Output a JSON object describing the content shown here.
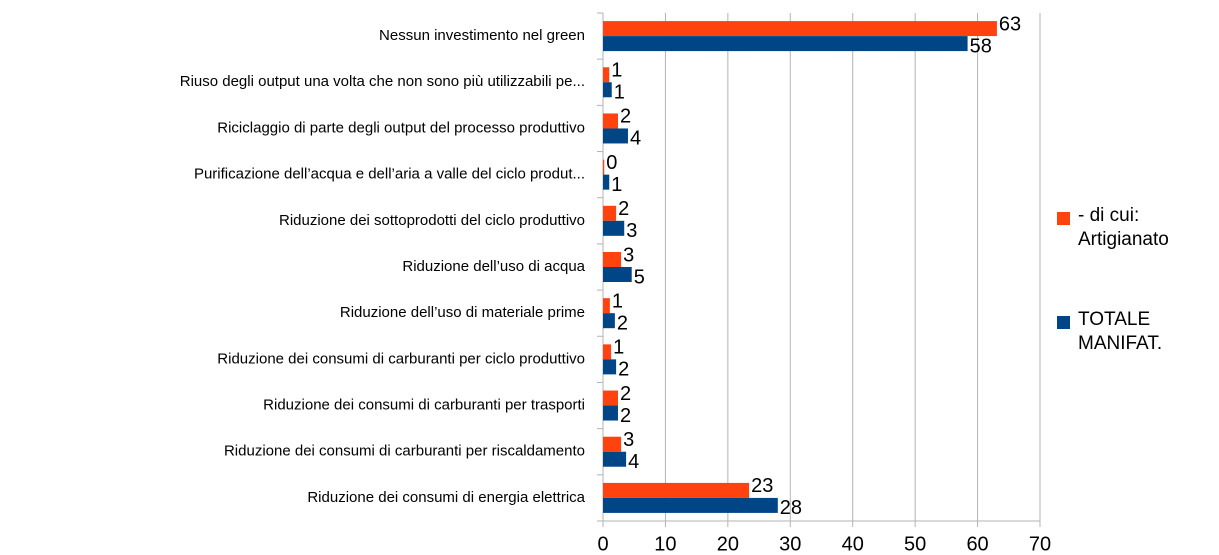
{
  "chart_data": {
    "type": "hbar",
    "categories": [
      "Nessun investimento nel green",
      "Riuso degli output una volta che non sono più utilizzabili pe...",
      "Riciclaggio di parte degli output del processo produttivo",
      "Purificazione dell’acqua e dell’aria a valle del ciclo produt...",
      "Riduzione dei sottoprodotti del ciclo produttivo",
      "Riduzione dell’uso di acqua",
      "Riduzione dell’uso di materiale prime",
      "Riduzione dei consumi di carburanti per ciclo produttivo",
      "Riduzione dei consumi di carburanti per trasporti",
      "Riduzione dei consumi di carburanti per riscaldamento",
      "Riduzione dei consumi di energia elettrica"
    ],
    "series": [
      {
        "name": "- di cui: Artigianato",
        "color": "#ff420e",
        "values": [
          63.1,
          1.0,
          2.4,
          0.2,
          2.1,
          2.9,
          1.1,
          1.3,
          2.4,
          2.9,
          23.4
        ],
        "value_labels": [
          "63",
          "1",
          "2",
          "0",
          "2",
          "3",
          "1",
          "1",
          "2",
          "3",
          "23"
        ]
      },
      {
        "name": "TOTALE MANIFAT.",
        "color": "#004586",
        "values": [
          58.4,
          1.4,
          4.0,
          1.0,
          3.4,
          4.6,
          1.9,
          2.1,
          2.4,
          3.7,
          28.0
        ],
        "value_labels": [
          "58",
          "1",
          "4",
          "1",
          "3",
          "5",
          "2",
          "2",
          "2",
          "4",
          "28"
        ]
      }
    ],
    "xlim": [
      0,
      70
    ],
    "xticks": [
      0,
      10,
      20,
      30,
      40,
      50,
      60,
      70
    ],
    "grid": true,
    "legend": "right"
  }
}
